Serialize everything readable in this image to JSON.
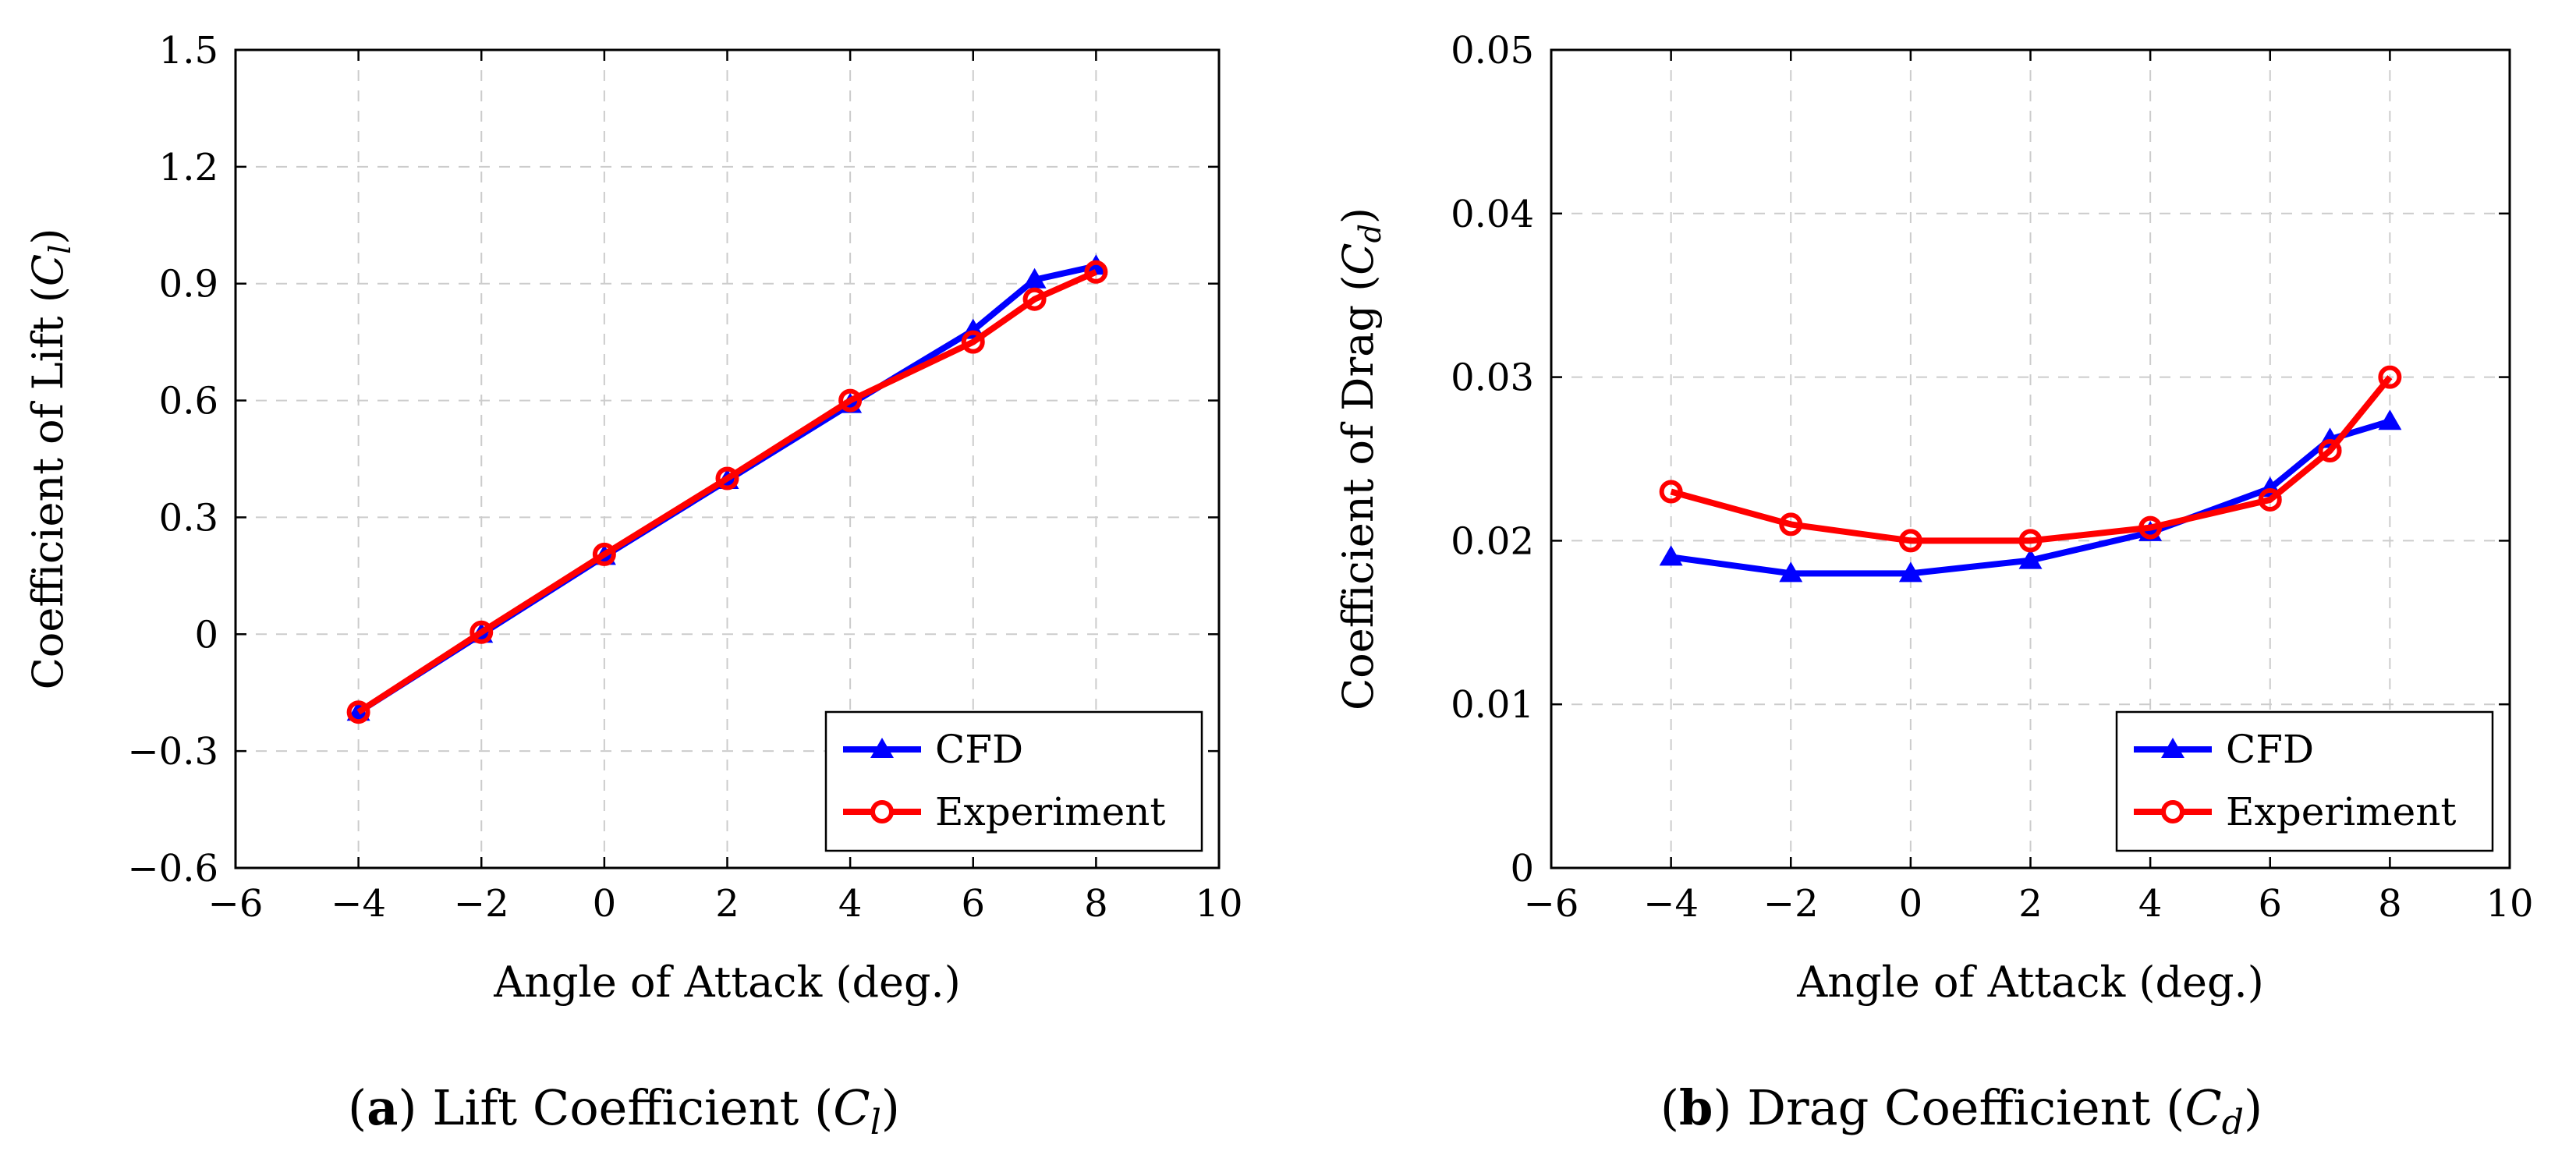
{
  "colors": {
    "cfd": "#0000ff",
    "experiment": "#ff0000",
    "grid": "#cccccc"
  },
  "chart_data": [
    {
      "type": "line",
      "caption_letter": "a",
      "caption_text": "Lift Coefficient",
      "caption_sym": "C",
      "caption_sub": "l",
      "xlabel": "Angle of Attack (deg.)",
      "ylabel_text": "Coefficient of Lift",
      "ylabel_sym": "C",
      "ylabel_sub": "l",
      "xlim": [
        -6,
        10
      ],
      "ylim": [
        -0.6,
        1.5
      ],
      "xticks": [
        -6,
        -4,
        -2,
        0,
        2,
        4,
        6,
        8,
        10
      ],
      "xtick_labels": [
        "−6",
        "−4",
        "−2",
        "0",
        "2",
        "4",
        "6",
        "8",
        "10"
      ],
      "yticks": [
        -0.6,
        -0.3,
        0,
        0.3,
        0.6,
        0.9,
        1.2,
        1.5
      ],
      "ytick_labels": [
        "−0.6",
        "−0.3",
        "0",
        "0.3",
        "0.6",
        "0.9",
        "1.2",
        "1.5"
      ],
      "grid": true,
      "legend_position": "bottom-right",
      "series": [
        {
          "name": "CFD",
          "marker": "triangle",
          "x": [
            -4,
            -2,
            0,
            2,
            4,
            6,
            7,
            8
          ],
          "y": [
            -0.2,
            0.0,
            0.2,
            0.395,
            0.59,
            0.78,
            0.91,
            0.945
          ]
        },
        {
          "name": "Experiment",
          "marker": "circle",
          "x": [
            -4,
            -2,
            0,
            2,
            4,
            6,
            7,
            8
          ],
          "y": [
            -0.2,
            0.005,
            0.205,
            0.4,
            0.6,
            0.75,
            0.86,
            0.93
          ]
        }
      ]
    },
    {
      "type": "line",
      "caption_letter": "b",
      "caption_text": "Drag Coefficient",
      "caption_sym": "C",
      "caption_sub": "d",
      "xlabel": "Angle of Attack (deg.)",
      "ylabel_text": "Coefficient of Drag",
      "ylabel_sym": "C",
      "ylabel_sub": "d",
      "xlim": [
        -6,
        10
      ],
      "ylim": [
        0,
        0.05
      ],
      "xticks": [
        -6,
        -4,
        -2,
        0,
        2,
        4,
        6,
        8,
        10
      ],
      "xtick_labels": [
        "−6",
        "−4",
        "−2",
        "0",
        "2",
        "4",
        "6",
        "8",
        "10"
      ],
      "yticks": [
        0,
        0.01,
        0.02,
        0.03,
        0.04,
        0.05
      ],
      "ytick_labels": [
        "0",
        "0.01",
        "0.02",
        "0.03",
        "0.04",
        "0.05"
      ],
      "grid": true,
      "legend_position": "bottom-right",
      "series": [
        {
          "name": "CFD",
          "marker": "triangle",
          "x": [
            -4,
            -2,
            0,
            2,
            4,
            6,
            7,
            8
          ],
          "y": [
            0.019,
            0.018,
            0.018,
            0.0188,
            0.0205,
            0.0232,
            0.0262,
            0.0273
          ]
        },
        {
          "name": "Experiment",
          "marker": "circle",
          "x": [
            -4,
            -2,
            0,
            2,
            4,
            6,
            7,
            8
          ],
          "y": [
            0.023,
            0.021,
            0.02,
            0.02,
            0.0208,
            0.0225,
            0.0255,
            0.03
          ]
        }
      ]
    }
  ]
}
